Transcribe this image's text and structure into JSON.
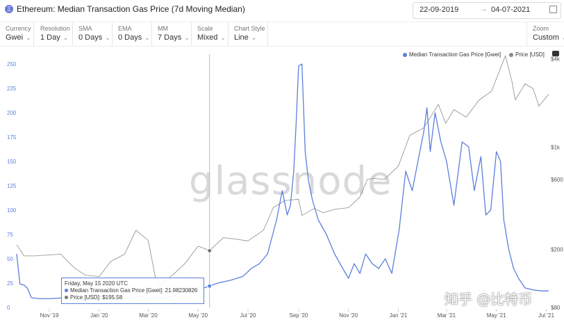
{
  "header": {
    "title": "Ethereum: Median Transaction Gas Price (7d Moving Median)",
    "icon": "ethereum-icon",
    "date_from": "22-09-2019",
    "date_to": "04-07-2021",
    "date_arrow": "→"
  },
  "controls": [
    {
      "label": "Currency",
      "value": "Gwei"
    },
    {
      "label": "Resolution",
      "value": "1 Day"
    },
    {
      "label": "SMA",
      "value": "0 Days"
    },
    {
      "label": "EMA",
      "value": "0 Days"
    },
    {
      "label": "MM",
      "value": "7 Days"
    },
    {
      "label": "Scale",
      "value": "Mixed"
    },
    {
      "label": "Chart Style",
      "value": "Line"
    }
  ],
  "zoom": {
    "label": "Zoom",
    "value": "Custom"
  },
  "legend": {
    "gas": "Median Transaction Gas Price [Gwei]",
    "price": "Price [USD]"
  },
  "colors": {
    "gas": "#5b7fdc",
    "price": "#8a8a8a",
    "axis_left": "#5b7fdc"
  },
  "watermark": "glassnode",
  "overlay_watermark": "知乎 @比特币",
  "tooltip": {
    "date": "Friday, May 15 2020 UTC",
    "gas": "Median Transaction Gas Price [Gwei]: 21.98230826",
    "price": "Price [USD]: $195.58"
  },
  "chart_data": {
    "type": "line",
    "title": "Ethereum: Median Transaction Gas Price (7d Moving Median)",
    "x_ticks": [
      "Nov '19",
      "Jan '20",
      "Mar '20",
      "May '20",
      "Jul '20",
      "Sep '20",
      "Nov '20",
      "Jan '21",
      "Mar '21",
      "May '21",
      "Jul '21"
    ],
    "x_tick_dates": [
      "2019-11-01",
      "2020-01-01",
      "2020-03-01",
      "2020-05-01",
      "2020-07-01",
      "2020-09-01",
      "2020-11-01",
      "2021-01-01",
      "2021-03-01",
      "2021-05-01",
      "2021-07-01"
    ],
    "xlim": [
      "2019-09-22",
      "2021-07-04"
    ],
    "y_left": {
      "label": "Median Transaction Gas Price [Gwei]",
      "scale": "linear",
      "ylim": [
        0,
        260
      ],
      "ticks": [
        0,
        25,
        50,
        75,
        100,
        125,
        150,
        175,
        200,
        225,
        250
      ]
    },
    "y_right": {
      "label": "Price [USD]",
      "scale": "log",
      "ylim": [
        80,
        4300
      ],
      "ticks": [
        80,
        200,
        600,
        1000,
        4000
      ],
      "tick_labels": [
        "$80",
        "$200",
        "$600",
        "$1k",
        "$4k"
      ]
    },
    "grid": false,
    "legend_position": "top-right",
    "series": [
      {
        "name": "Median Transaction Gas Price [Gwei]",
        "axis": "left",
        "points": [
          [
            "2019-09-22",
            55
          ],
          [
            "2019-09-26",
            24
          ],
          [
            "2019-10-01",
            23
          ],
          [
            "2019-10-05",
            20
          ],
          [
            "2019-10-10",
            10
          ],
          [
            "2019-10-20",
            9
          ],
          [
            "2019-11-01",
            9
          ],
          [
            "2019-11-20",
            10
          ],
          [
            "2019-12-05",
            8
          ],
          [
            "2019-12-20",
            8
          ],
          [
            "2020-01-10",
            9
          ],
          [
            "2020-01-25",
            8
          ],
          [
            "2020-02-10",
            10
          ],
          [
            "2020-02-20",
            12
          ],
          [
            "2020-03-01",
            8
          ],
          [
            "2020-03-12",
            11
          ],
          [
            "2020-03-20",
            9
          ],
          [
            "2020-04-01",
            12
          ],
          [
            "2020-04-15",
            17
          ],
          [
            "2020-05-01",
            18
          ],
          [
            "2020-05-15",
            22
          ],
          [
            "2020-05-25",
            25
          ],
          [
            "2020-06-10",
            28
          ],
          [
            "2020-06-25",
            32
          ],
          [
            "2020-07-05",
            40
          ],
          [
            "2020-07-15",
            45
          ],
          [
            "2020-07-25",
            55
          ],
          [
            "2020-08-05",
            90
          ],
          [
            "2020-08-12",
            120
          ],
          [
            "2020-08-18",
            95
          ],
          [
            "2020-08-22",
            105
          ],
          [
            "2020-08-26",
            140
          ],
          [
            "2020-08-29",
            190
          ],
          [
            "2020-09-01",
            248
          ],
          [
            "2020-09-05",
            250
          ],
          [
            "2020-09-09",
            160
          ],
          [
            "2020-09-13",
            130
          ],
          [
            "2020-09-18",
            110
          ],
          [
            "2020-09-25",
            90
          ],
          [
            "2020-10-05",
            75
          ],
          [
            "2020-10-15",
            55
          ],
          [
            "2020-10-25",
            40
          ],
          [
            "2020-11-01",
            30
          ],
          [
            "2020-11-08",
            45
          ],
          [
            "2020-11-15",
            35
          ],
          [
            "2020-11-22",
            55
          ],
          [
            "2020-11-30",
            45
          ],
          [
            "2020-12-08",
            40
          ],
          [
            "2020-12-16",
            50
          ],
          [
            "2020-12-24",
            35
          ],
          [
            "2021-01-02",
            80
          ],
          [
            "2021-01-10",
            140
          ],
          [
            "2021-01-18",
            120
          ],
          [
            "2021-01-25",
            150
          ],
          [
            "2021-02-01",
            180
          ],
          [
            "2021-02-05",
            205
          ],
          [
            "2021-02-09",
            160
          ],
          [
            "2021-02-15",
            200
          ],
          [
            "2021-02-22",
            170
          ],
          [
            "2021-03-01",
            150
          ],
          [
            "2021-03-10",
            105
          ],
          [
            "2021-03-20",
            170
          ],
          [
            "2021-03-28",
            165
          ],
          [
            "2021-04-04",
            120
          ],
          [
            "2021-04-12",
            155
          ],
          [
            "2021-04-18",
            95
          ],
          [
            "2021-04-24",
            100
          ],
          [
            "2021-05-01",
            160
          ],
          [
            "2021-05-06",
            150
          ],
          [
            "2021-05-10",
            90
          ],
          [
            "2021-05-16",
            60
          ],
          [
            "2021-05-22",
            40
          ],
          [
            "2021-05-28",
            30
          ],
          [
            "2021-06-05",
            20
          ],
          [
            "2021-06-15",
            18
          ],
          [
            "2021-06-25",
            17
          ],
          [
            "2021-07-04",
            17
          ]
        ]
      },
      {
        "name": "Price [USD]",
        "axis": "right",
        "points": [
          [
            "2019-09-22",
            215
          ],
          [
            "2019-10-01",
            180
          ],
          [
            "2019-10-15",
            180
          ],
          [
            "2019-11-01",
            183
          ],
          [
            "2019-11-15",
            185
          ],
          [
            "2019-12-01",
            150
          ],
          [
            "2019-12-15",
            133
          ],
          [
            "2020-01-01",
            130
          ],
          [
            "2020-01-15",
            165
          ],
          [
            "2020-02-01",
            185
          ],
          [
            "2020-02-15",
            270
          ],
          [
            "2020-02-22",
            250
          ],
          [
            "2020-03-01",
            230
          ],
          [
            "2020-03-12",
            110
          ],
          [
            "2020-03-16",
            115
          ],
          [
            "2020-04-01",
            135
          ],
          [
            "2020-04-15",
            160
          ],
          [
            "2020-05-01",
            210
          ],
          [
            "2020-05-15",
            196
          ],
          [
            "2020-06-01",
            240
          ],
          [
            "2020-06-15",
            235
          ],
          [
            "2020-07-01",
            228
          ],
          [
            "2020-07-20",
            270
          ],
          [
            "2020-08-01",
            385
          ],
          [
            "2020-08-15",
            430
          ],
          [
            "2020-09-01",
            440
          ],
          [
            "2020-09-05",
            340
          ],
          [
            "2020-09-20",
            380
          ],
          [
            "2020-10-01",
            355
          ],
          [
            "2020-10-15",
            375
          ],
          [
            "2020-11-01",
            385
          ],
          [
            "2020-11-15",
            455
          ],
          [
            "2020-11-24",
            600
          ],
          [
            "2020-12-01",
            610
          ],
          [
            "2020-12-15",
            600
          ],
          [
            "2021-01-01",
            740
          ],
          [
            "2021-01-15",
            1200
          ],
          [
            "2021-02-01",
            1350
          ],
          [
            "2021-02-19",
            1950
          ],
          [
            "2021-02-28",
            1450
          ],
          [
            "2021-03-10",
            1800
          ],
          [
            "2021-03-25",
            1600
          ],
          [
            "2021-04-10",
            2100
          ],
          [
            "2021-04-25",
            2400
          ],
          [
            "2021-05-10",
            3950
          ],
          [
            "2021-05-12",
            4200
          ],
          [
            "2021-05-20",
            2800
          ],
          [
            "2021-05-24",
            2100
          ],
          [
            "2021-06-05",
            2700
          ],
          [
            "2021-06-15",
            2500
          ],
          [
            "2021-06-22",
            1900
          ],
          [
            "2021-07-04",
            2300
          ]
        ]
      }
    ],
    "highlight": {
      "date": "2020-05-15",
      "gas": 21.98230826,
      "price": 195.58
    }
  }
}
